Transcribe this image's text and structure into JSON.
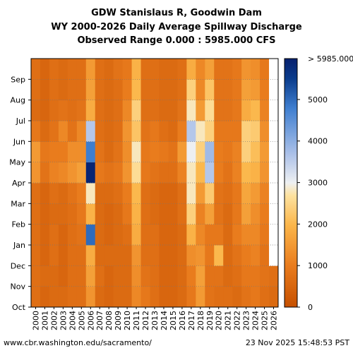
{
  "title_lines": [
    "GDW Stanislaus R, Goodwin Dam",
    "WY 2000-2026 Daily Average Spillway Discharge",
    "Observed Range 0.000 : 5985.000 CFS"
  ],
  "footer": {
    "url": "www.cbr.washington.edu/sacramento/",
    "timestamp": "23 Nov 2025 15:48:53 PST"
  },
  "colors": {
    "low": "#c9520a",
    "mid": "#f3a33a",
    "pale": "#fde2a0",
    "cool": "#b0c4e8",
    "high": "#0a3c8c",
    "max": "#08206e",
    "grid": "#777777"
  },
  "chart_data": {
    "type": "heatmap",
    "title": "GDW Stanislaus R, Goodwin Dam WY 2000-2026 Daily Average Spillway Discharge",
    "subtitle": "Observed Range 0.000 : 5985.000 CFS",
    "units": "CFS",
    "x_categories": [
      "2000",
      "2001",
      "2002",
      "2003",
      "2004",
      "2005",
      "2006",
      "2007",
      "2008",
      "2009",
      "2010",
      "2011",
      "2012",
      "2013",
      "2014",
      "2015",
      "2016",
      "2017",
      "2018",
      "2019",
      "2020",
      "2021",
      "2022",
      "2023",
      "2024",
      "2025",
      "2026"
    ],
    "y_categories": [
      "Oct",
      "Nov",
      "Dec",
      "Jan",
      "Feb",
      "Mar",
      "Apr",
      "May",
      "Jun",
      "Jul",
      "Aug",
      "Sep"
    ],
    "value_range": [
      0,
      5985
    ],
    "colorbar": {
      "ticks": [
        0,
        1000,
        2000,
        3000,
        4000,
        5000
      ],
      "top_label": "> 5985.000"
    },
    "data_note_last_year_months": 2,
    "monthly_cfs": [
      [
        700,
        700,
        700,
        700,
        700,
        700,
        1400,
        1500,
        900,
        600,
        700,
        700
      ],
      [
        500,
        600,
        500,
        500,
        500,
        500,
        800,
        900,
        600,
        500,
        500,
        500
      ],
      [
        600,
        600,
        700,
        700,
        600,
        700,
        1100,
        1000,
        800,
        700,
        700,
        700
      ],
      [
        600,
        500,
        500,
        500,
        600,
        600,
        1200,
        1000,
        1200,
        800,
        600,
        600
      ],
      [
        700,
        700,
        700,
        700,
        700,
        800,
        1400,
        1300,
        800,
        700,
        700,
        700
      ],
      [
        700,
        700,
        700,
        800,
        900,
        1000,
        1600,
        1300,
        1200,
        800,
        700,
        700
      ],
      [
        1400,
        1600,
        1800,
        5000,
        1900,
        2800,
        5900,
        4800,
        3600,
        1800,
        1600,
        1500
      ],
      [
        600,
        700,
        600,
        600,
        600,
        600,
        900,
        800,
        700,
        700,
        700,
        700
      ],
      [
        500,
        500,
        600,
        500,
        500,
        600,
        800,
        600,
        600,
        600,
        600,
        600
      ],
      [
        600,
        600,
        600,
        600,
        600,
        700,
        900,
        800,
        700,
        700,
        700,
        800
      ],
      [
        600,
        600,
        600,
        700,
        900,
        1000,
        1400,
        1300,
        1400,
        1200,
        1000,
        900
      ],
      [
        1200,
        1300,
        1400,
        1800,
        1900,
        2000,
        2600,
        2800,
        2200,
        2400,
        2000,
        1900
      ],
      [
        900,
        800,
        700,
        700,
        700,
        700,
        900,
        900,
        800,
        700,
        700,
        700
      ],
      [
        700,
        700,
        700,
        700,
        600,
        600,
        800,
        1000,
        900,
        700,
        700,
        700
      ],
      [
        500,
        500,
        500,
        500,
        500,
        500,
        700,
        900,
        700,
        600,
        600,
        600
      ],
      [
        500,
        500,
        500,
        500,
        500,
        500,
        700,
        800,
        600,
        600,
        600,
        600
      ],
      [
        600,
        600,
        600,
        600,
        700,
        700,
        1100,
        1500,
        1000,
        800,
        700,
        700
      ],
      [
        900,
        1000,
        1300,
        1900,
        2400,
        2800,
        2800,
        3000,
        3600,
        2800,
        2400,
        1800
      ],
      [
        1500,
        1600,
        1400,
        1200,
        1100,
        1500,
        2000,
        2400,
        2800,
        1500,
        1200,
        1200
      ],
      [
        800,
        800,
        900,
        900,
        1600,
        2300,
        3600,
        3800,
        2400,
        2600,
        2200,
        1600
      ],
      [
        700,
        800,
        2000,
        900,
        800,
        800,
        1000,
        1000,
        900,
        800,
        800,
        800
      ],
      [
        700,
        600,
        600,
        600,
        600,
        700,
        800,
        900,
        900,
        800,
        800,
        800
      ],
      [
        600,
        700,
        800,
        1000,
        900,
        900,
        1100,
        1100,
        900,
        900,
        900,
        900
      ],
      [
        800,
        900,
        1000,
        1200,
        1600,
        1700,
        2000,
        2400,
        2400,
        1800,
        1600,
        1400
      ],
      [
        900,
        900,
        1100,
        1200,
        1300,
        1500,
        1900,
        2100,
        2300,
        2000,
        1500,
        1300
      ],
      [
        700,
        800,
        800,
        900,
        1000,
        1100,
        1400,
        1500,
        1300,
        1100,
        1000,
        900
      ],
      [
        600,
        700,
        null,
        null,
        null,
        null,
        null,
        null,
        null,
        null,
        null,
        null
      ]
    ]
  }
}
